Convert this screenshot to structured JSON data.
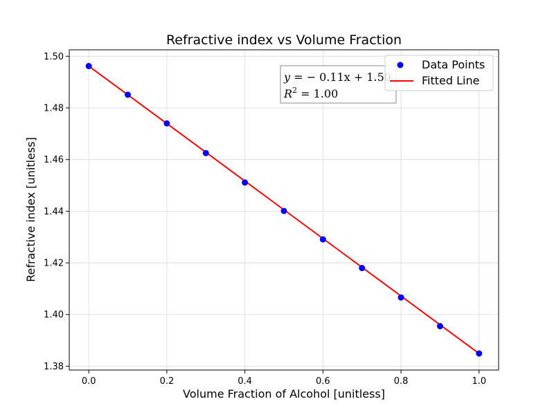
{
  "chart_data": {
    "type": "scatter",
    "title": "Refractive index vs Volume Fraction",
    "xlabel": "Volume Fraction of Alcohol [unitless]",
    "ylabel": "Refractive index [unitless]",
    "xlim": [
      -0.05,
      1.05
    ],
    "ylim": [
      1.3785,
      1.5025
    ],
    "xticks": [
      0.0,
      0.2,
      0.4,
      0.6,
      0.8,
      1.0
    ],
    "xtick_labels": [
      "0.0",
      "0.2",
      "0.4",
      "0.6",
      "0.8",
      "1.0"
    ],
    "yticks": [
      1.38,
      1.4,
      1.42,
      1.44,
      1.46,
      1.48,
      1.5
    ],
    "ytick_labels": [
      "1.38",
      "1.40",
      "1.42",
      "1.44",
      "1.46",
      "1.48",
      "1.50"
    ],
    "grid": true,
    "legend_position": "top-right",
    "series": [
      {
        "name": "Data Points",
        "kind": "scatter",
        "color": "#0000ff",
        "x": [
          0.0,
          0.1,
          0.2,
          0.3,
          0.4,
          0.5,
          0.6,
          0.7,
          0.8,
          0.9,
          1.0
        ],
        "y": [
          1.4962,
          1.4851,
          1.474,
          1.4625,
          1.4511,
          1.4401,
          1.4291,
          1.418,
          1.4066,
          1.3955,
          1.3849
        ]
      },
      {
        "name": "Fitted Line",
        "kind": "line",
        "color": "#ff0000",
        "x": [
          0.0,
          1.0
        ],
        "y": [
          1.4962,
          1.3849
        ]
      }
    ],
    "annotation": {
      "equation_prefix": "y = ",
      "equation_body": "− 0.11x + 1.50",
      "r2_prefix": "R",
      "r2_sup": "2",
      "r2_suffix": " = 1.00"
    }
  }
}
